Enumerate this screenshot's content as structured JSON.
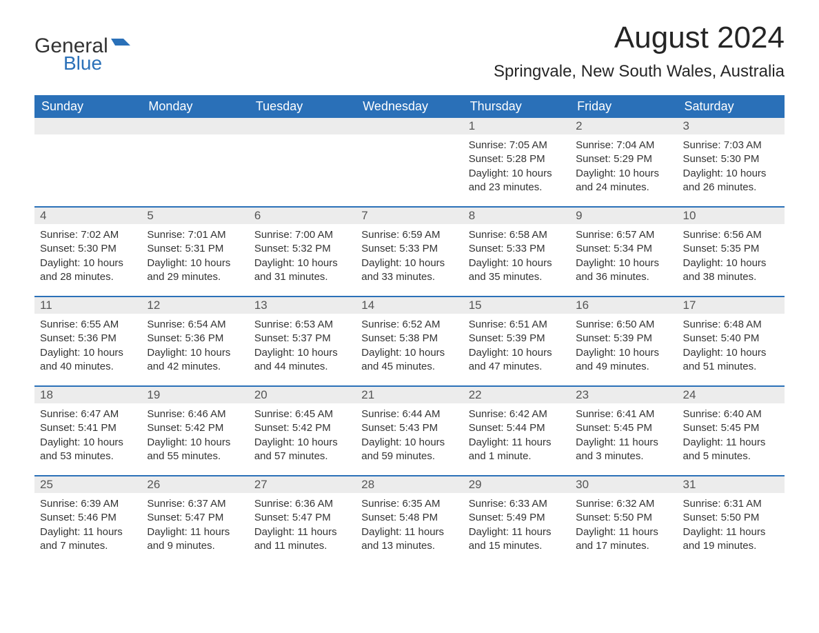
{
  "logo": {
    "text_general": "General",
    "text_blue": "Blue",
    "flag_color": "#2a70b8"
  },
  "title": "August 2024",
  "location": "Springvale, New South Wales, Australia",
  "colors": {
    "header_bg": "#2a70b8",
    "header_text": "#ffffff",
    "daynum_bg": "#ececec",
    "daynum_text": "#555555",
    "body_text": "#333333",
    "page_bg": "#ffffff",
    "week_border": "#2a70b8"
  },
  "typography": {
    "month_title_fontsize": 44,
    "location_fontsize": 24,
    "weekday_fontsize": 18,
    "daynum_fontsize": 17,
    "body_fontsize": 15
  },
  "weekdays": [
    "Sunday",
    "Monday",
    "Tuesday",
    "Wednesday",
    "Thursday",
    "Friday",
    "Saturday"
  ],
  "labels": {
    "sunrise": "Sunrise:",
    "sunset": "Sunset:",
    "daylight": "Daylight:"
  },
  "weeks": [
    [
      {
        "day": "",
        "sunrise": "",
        "sunset": "",
        "daylight": ""
      },
      {
        "day": "",
        "sunrise": "",
        "sunset": "",
        "daylight": ""
      },
      {
        "day": "",
        "sunrise": "",
        "sunset": "",
        "daylight": ""
      },
      {
        "day": "",
        "sunrise": "",
        "sunset": "",
        "daylight": ""
      },
      {
        "day": "1",
        "sunrise": "7:05 AM",
        "sunset": "5:28 PM",
        "daylight": "10 hours and 23 minutes."
      },
      {
        "day": "2",
        "sunrise": "7:04 AM",
        "sunset": "5:29 PM",
        "daylight": "10 hours and 24 minutes."
      },
      {
        "day": "3",
        "sunrise": "7:03 AM",
        "sunset": "5:30 PM",
        "daylight": "10 hours and 26 minutes."
      }
    ],
    [
      {
        "day": "4",
        "sunrise": "7:02 AM",
        "sunset": "5:30 PM",
        "daylight": "10 hours and 28 minutes."
      },
      {
        "day": "5",
        "sunrise": "7:01 AM",
        "sunset": "5:31 PM",
        "daylight": "10 hours and 29 minutes."
      },
      {
        "day": "6",
        "sunrise": "7:00 AM",
        "sunset": "5:32 PM",
        "daylight": "10 hours and 31 minutes."
      },
      {
        "day": "7",
        "sunrise": "6:59 AM",
        "sunset": "5:33 PM",
        "daylight": "10 hours and 33 minutes."
      },
      {
        "day": "8",
        "sunrise": "6:58 AM",
        "sunset": "5:33 PM",
        "daylight": "10 hours and 35 minutes."
      },
      {
        "day": "9",
        "sunrise": "6:57 AM",
        "sunset": "5:34 PM",
        "daylight": "10 hours and 36 minutes."
      },
      {
        "day": "10",
        "sunrise": "6:56 AM",
        "sunset": "5:35 PM",
        "daylight": "10 hours and 38 minutes."
      }
    ],
    [
      {
        "day": "11",
        "sunrise": "6:55 AM",
        "sunset": "5:36 PM",
        "daylight": "10 hours and 40 minutes."
      },
      {
        "day": "12",
        "sunrise": "6:54 AM",
        "sunset": "5:36 PM",
        "daylight": "10 hours and 42 minutes."
      },
      {
        "day": "13",
        "sunrise": "6:53 AM",
        "sunset": "5:37 PM",
        "daylight": "10 hours and 44 minutes."
      },
      {
        "day": "14",
        "sunrise": "6:52 AM",
        "sunset": "5:38 PM",
        "daylight": "10 hours and 45 minutes."
      },
      {
        "day": "15",
        "sunrise": "6:51 AM",
        "sunset": "5:39 PM",
        "daylight": "10 hours and 47 minutes."
      },
      {
        "day": "16",
        "sunrise": "6:50 AM",
        "sunset": "5:39 PM",
        "daylight": "10 hours and 49 minutes."
      },
      {
        "day": "17",
        "sunrise": "6:48 AM",
        "sunset": "5:40 PM",
        "daylight": "10 hours and 51 minutes."
      }
    ],
    [
      {
        "day": "18",
        "sunrise": "6:47 AM",
        "sunset": "5:41 PM",
        "daylight": "10 hours and 53 minutes."
      },
      {
        "day": "19",
        "sunrise": "6:46 AM",
        "sunset": "5:42 PM",
        "daylight": "10 hours and 55 minutes."
      },
      {
        "day": "20",
        "sunrise": "6:45 AM",
        "sunset": "5:42 PM",
        "daylight": "10 hours and 57 minutes."
      },
      {
        "day": "21",
        "sunrise": "6:44 AM",
        "sunset": "5:43 PM",
        "daylight": "10 hours and 59 minutes."
      },
      {
        "day": "22",
        "sunrise": "6:42 AM",
        "sunset": "5:44 PM",
        "daylight": "11 hours and 1 minute."
      },
      {
        "day": "23",
        "sunrise": "6:41 AM",
        "sunset": "5:45 PM",
        "daylight": "11 hours and 3 minutes."
      },
      {
        "day": "24",
        "sunrise": "6:40 AM",
        "sunset": "5:45 PM",
        "daylight": "11 hours and 5 minutes."
      }
    ],
    [
      {
        "day": "25",
        "sunrise": "6:39 AM",
        "sunset": "5:46 PM",
        "daylight": "11 hours and 7 minutes."
      },
      {
        "day": "26",
        "sunrise": "6:37 AM",
        "sunset": "5:47 PM",
        "daylight": "11 hours and 9 minutes."
      },
      {
        "day": "27",
        "sunrise": "6:36 AM",
        "sunset": "5:47 PM",
        "daylight": "11 hours and 11 minutes."
      },
      {
        "day": "28",
        "sunrise": "6:35 AM",
        "sunset": "5:48 PM",
        "daylight": "11 hours and 13 minutes."
      },
      {
        "day": "29",
        "sunrise": "6:33 AM",
        "sunset": "5:49 PM",
        "daylight": "11 hours and 15 minutes."
      },
      {
        "day": "30",
        "sunrise": "6:32 AM",
        "sunset": "5:50 PM",
        "daylight": "11 hours and 17 minutes."
      },
      {
        "day": "31",
        "sunrise": "6:31 AM",
        "sunset": "5:50 PM",
        "daylight": "11 hours and 19 minutes."
      }
    ]
  ]
}
